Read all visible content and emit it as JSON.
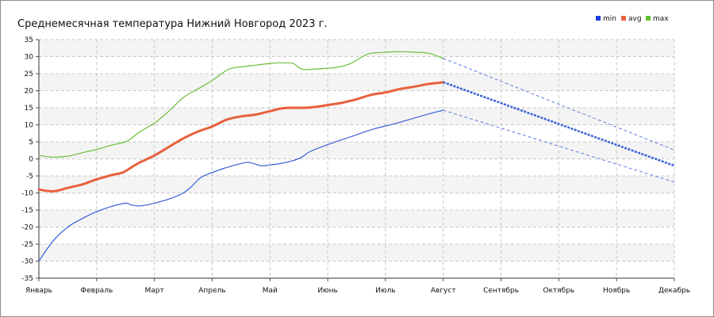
{
  "chart_data": {
    "type": "line",
    "title": "Среднемесячная температура Нижний Новгород  2023 г.",
    "xlabel": "",
    "ylabel": "",
    "categories": [
      "Январь",
      "Февраль",
      "Март",
      "Апрель",
      "Май",
      "Июнь",
      "Июль",
      "Август",
      "Сентябрь",
      "Октябрь",
      "Ноябрь",
      "Декабрь"
    ],
    "ylim": [
      -35,
      35
    ],
    "yticks": [
      35,
      30,
      25,
      20,
      15,
      10,
      5,
      0,
      -5,
      -10,
      -15,
      -20,
      -25,
      -30,
      -35
    ],
    "grid": true,
    "legend_position": "top-right",
    "series": [
      {
        "name": "min",
        "color": "#3a5fd9",
        "x": [
          0,
          0.25,
          0.5,
          0.75,
          1.0,
          1.25,
          1.5,
          1.6,
          1.75,
          2.0,
          2.3,
          2.5,
          2.65,
          2.8,
          3.0,
          3.2,
          3.4,
          3.6,
          3.7,
          3.85,
          4.0,
          4.2,
          4.4,
          4.55,
          4.7,
          5.0,
          5.4,
          5.8,
          6.2,
          6.6,
          7.0
        ],
        "values": [
          -30,
          -24,
          -20,
          -17.5,
          -15.5,
          -14,
          -13,
          -13.5,
          -13.8,
          -13,
          -11.5,
          -10,
          -8,
          -5.5,
          -4,
          -2.8,
          -1.8,
          -1,
          -1.3,
          -2,
          -1.8,
          -1.3,
          -0.5,
          0.5,
          2.2,
          4.2,
          6.5,
          8.8,
          10.5,
          12.5,
          14.3
        ],
        "projection": {
          "x": [
            7,
            11
          ],
          "values": [
            14.3,
            -6.8
          ]
        }
      },
      {
        "name": "avg",
        "color": "#e8603c",
        "x": [
          0,
          0.25,
          0.5,
          0.75,
          1.0,
          1.25,
          1.45,
          1.6,
          1.75,
          2.0,
          2.25,
          2.5,
          2.75,
          3.0,
          3.25,
          3.5,
          3.75,
          4.0,
          4.2,
          4.4,
          4.6,
          4.8,
          5.0,
          5.25,
          5.5,
          5.75,
          6.0,
          6.25,
          6.5,
          6.75,
          7.0
        ],
        "values": [
          -9,
          -9.5,
          -8.5,
          -7.5,
          -6,
          -4.8,
          -4,
          -2.5,
          -1,
          1,
          3.5,
          6,
          8,
          9.5,
          11.5,
          12.5,
          13,
          14,
          14.8,
          15,
          15,
          15.3,
          15.8,
          16.5,
          17.5,
          18.8,
          19.5,
          20.5,
          21.2,
          22,
          22.5
        ],
        "projection": {
          "x": [
            7,
            11
          ],
          "values": [
            22.5,
            -2
          ]
        }
      },
      {
        "name": "max",
        "color": "#6cbf3a",
        "x": [
          0,
          0.25,
          0.5,
          0.75,
          1.0,
          1.25,
          1.5,
          1.6,
          1.75,
          2.0,
          2.25,
          2.5,
          2.75,
          3.0,
          3.25,
          3.4,
          3.5,
          3.75,
          4.0,
          4.2,
          4.4,
          4.5,
          4.6,
          4.8,
          5.0,
          5.2,
          5.4,
          5.6,
          5.75,
          6.0,
          6.25,
          6.5,
          6.75,
          7.0
        ],
        "values": [
          1,
          0.5,
          0.8,
          1.8,
          2.8,
          4,
          5,
          6,
          8,
          10.5,
          14,
          18,
          20.5,
          23,
          26,
          26.8,
          27,
          27.5,
          28,
          28.2,
          28,
          26.8,
          26.2,
          26.4,
          26.6,
          27,
          28,
          30,
          31,
          31.3,
          31.5,
          31.3,
          31,
          29.5
        ],
        "projection": {
          "x": [
            7,
            11
          ],
          "values": [
            29.5,
            2.6
          ]
        }
      }
    ]
  }
}
